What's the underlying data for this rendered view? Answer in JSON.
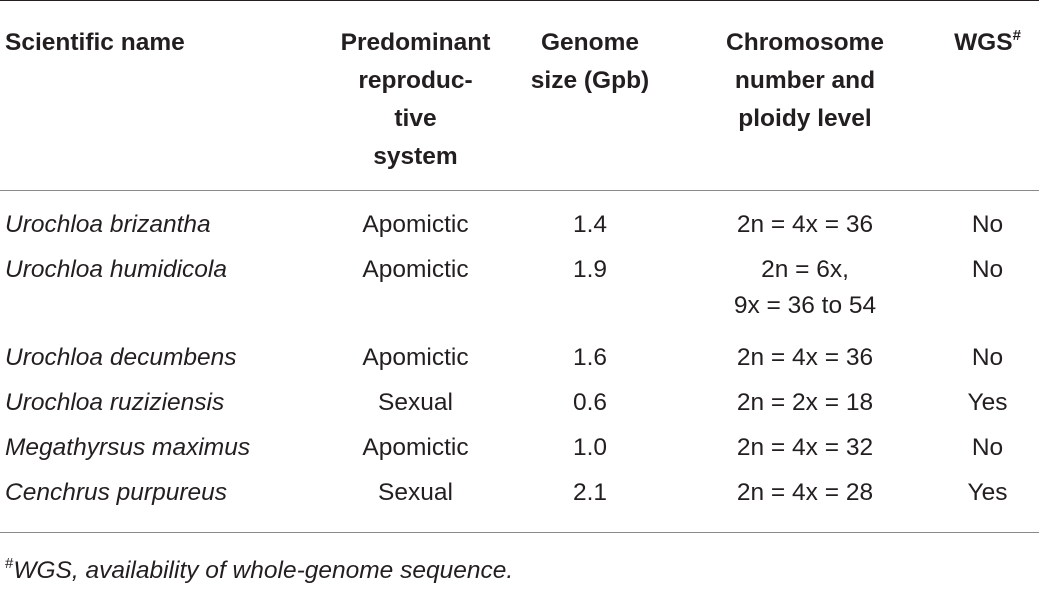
{
  "table": {
    "headers": {
      "name": "Scientific name",
      "repro": [
        "Predominant",
        "reproduc-",
        "tive",
        "system"
      ],
      "genome": [
        "Genome",
        "size (Gpb)"
      ],
      "chrom": [
        "Chromosome",
        "number and",
        "ploidy level"
      ],
      "wgs": "WGS",
      "wgs_mark": "#"
    },
    "rows": [
      {
        "name": "Urochloa brizantha",
        "repro": "Apomictic",
        "genome": "1.4",
        "chrom": [
          "2n = 4x = 36"
        ],
        "wgs": "No"
      },
      {
        "name": "Urochloa humidicola",
        "repro": "Apomictic",
        "genome": "1.9",
        "chrom": [
          "2n = 6x,",
          "9x = 36 to 54"
        ],
        "wgs": "No"
      },
      {
        "name": "Urochloa decumbens",
        "repro": "Apomictic",
        "genome": "1.6",
        "chrom": [
          "2n = 4x = 36"
        ],
        "wgs": "No"
      },
      {
        "name": "Urochloa ruziziensis",
        "repro": "Sexual",
        "genome": "0.6",
        "chrom": [
          "2n = 2x = 18"
        ],
        "wgs": "Yes"
      },
      {
        "name": "Megathyrsus maximus",
        "repro": "Apomictic",
        "genome": "1.0",
        "chrom": [
          "2n = 4x = 32"
        ],
        "wgs": "No"
      },
      {
        "name": "Cenchrus purpureus",
        "repro": "Sexual",
        "genome": "2.1",
        "chrom": [
          "2n = 4x = 28"
        ],
        "wgs": "Yes"
      }
    ]
  },
  "footnote": {
    "mark": "#",
    "text": "WGS, availability of whole-genome sequence."
  }
}
